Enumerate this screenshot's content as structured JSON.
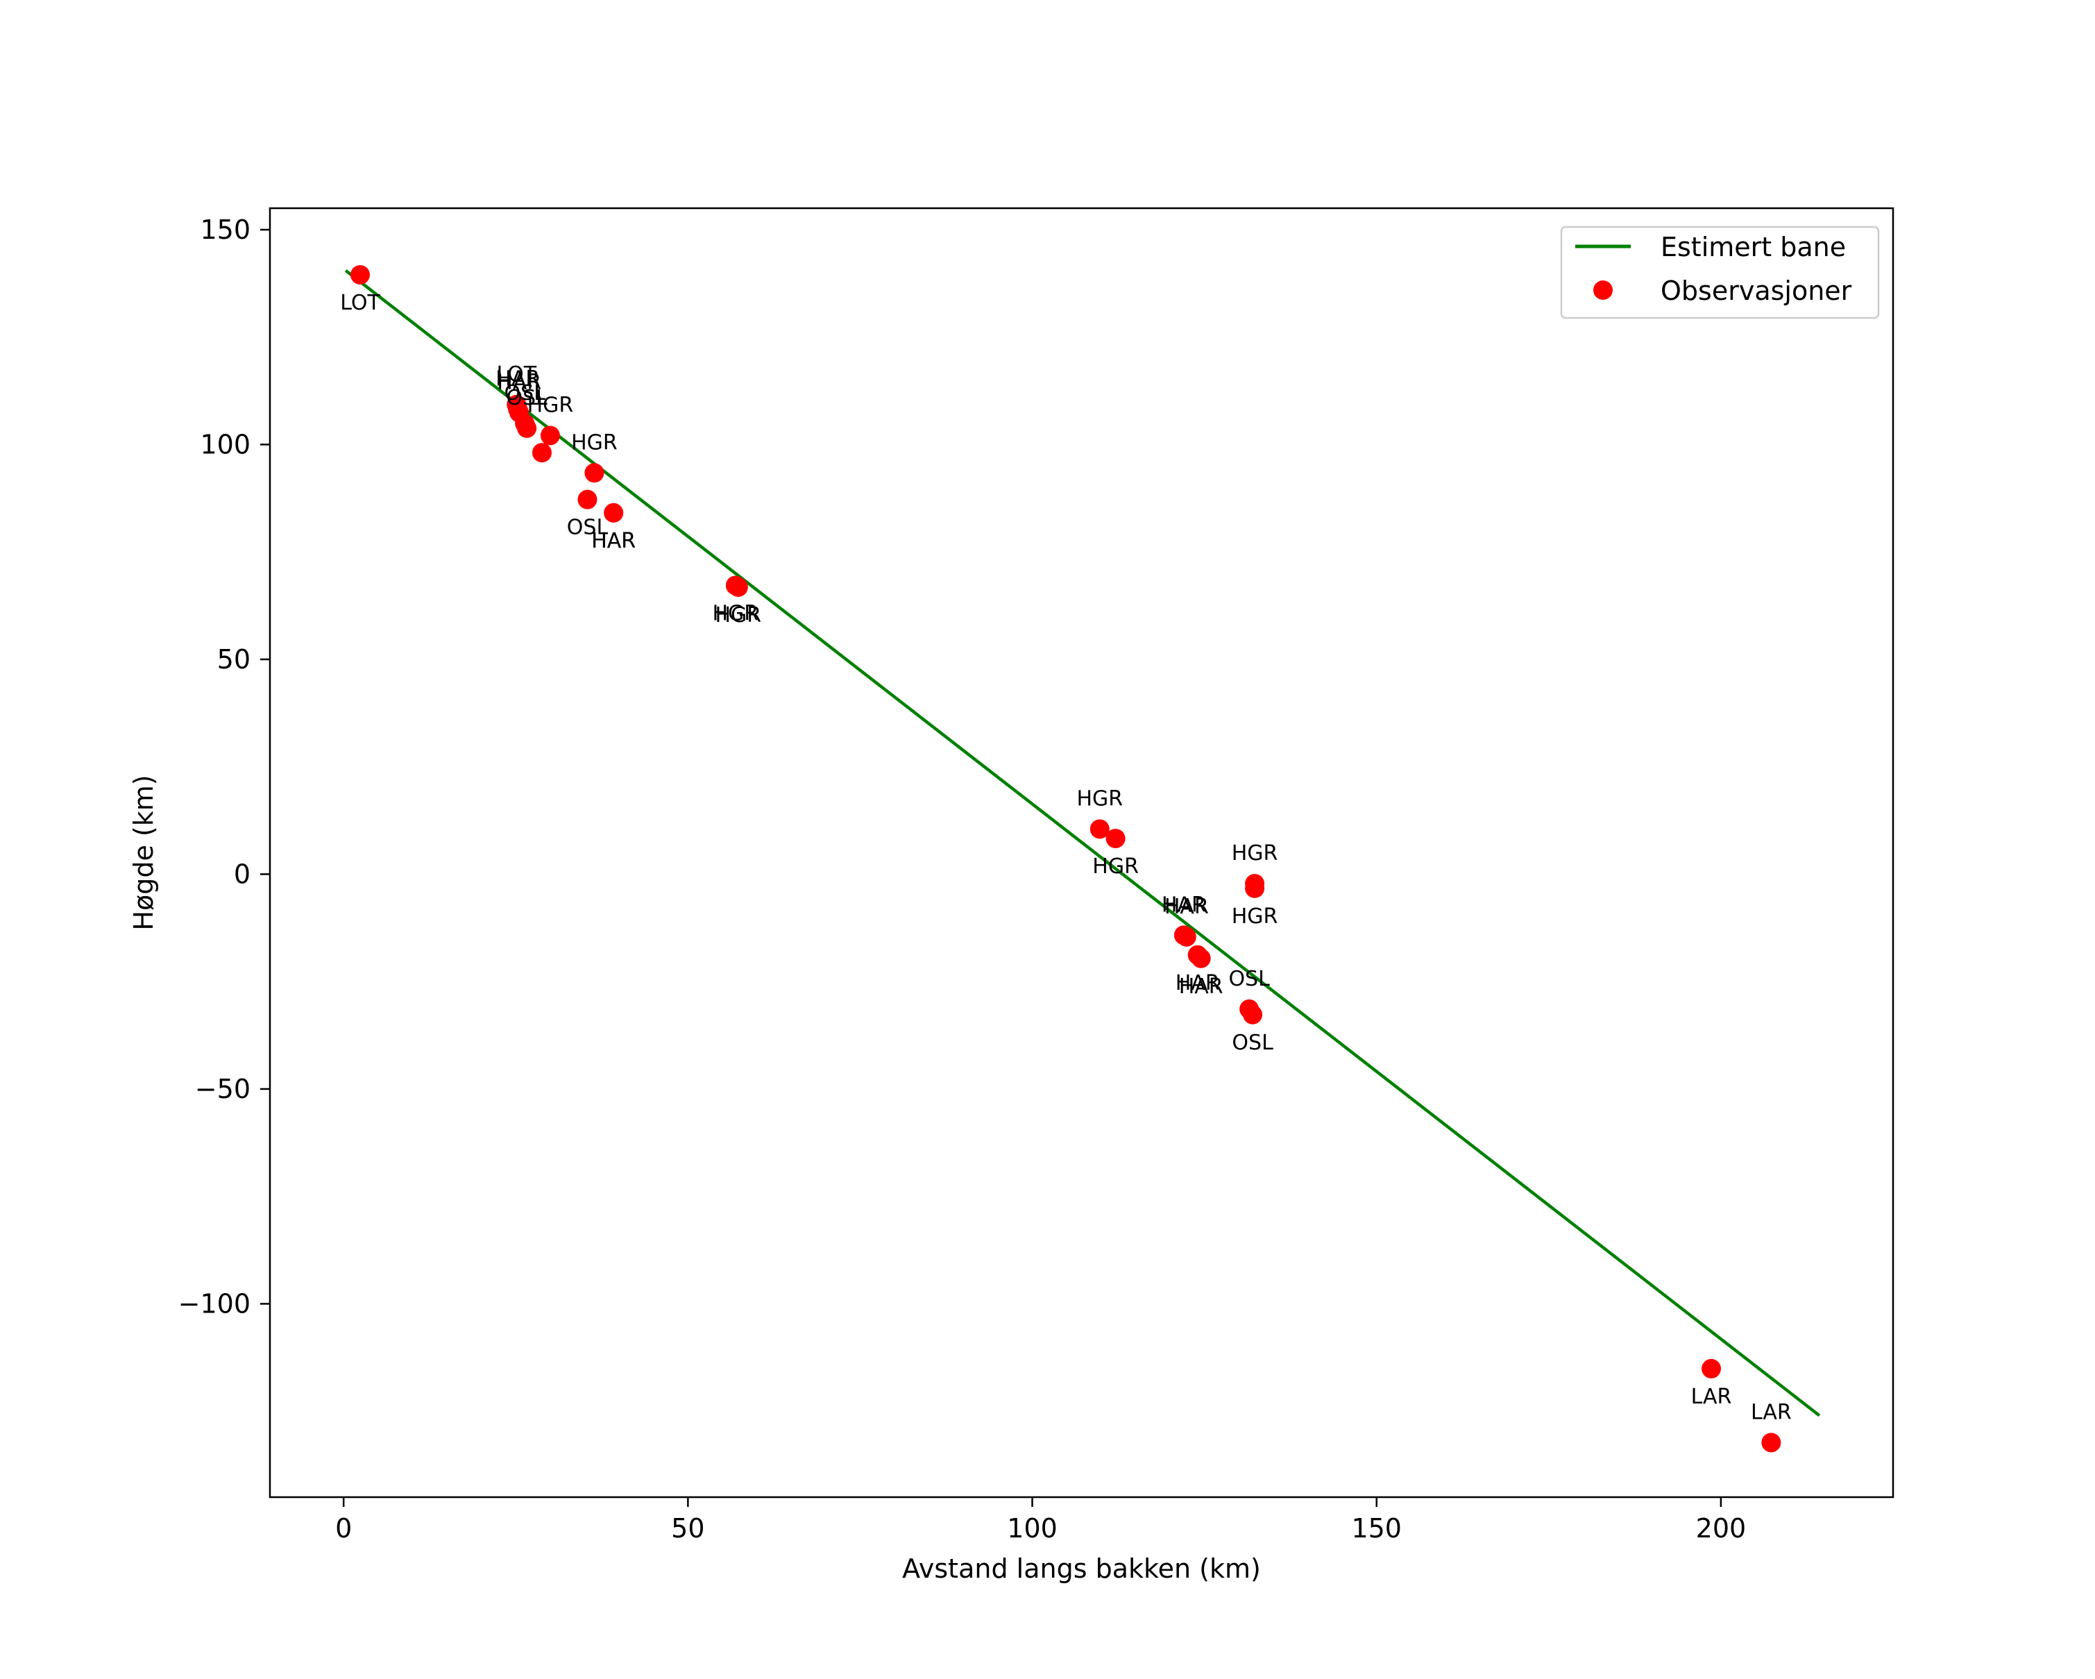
{
  "chart_data": {
    "type": "scatter",
    "title": "",
    "xlabel": "Avstand langs bakken (km)",
    "ylabel": "Høgde (km)",
    "xlim": [
      -10.7,
      225.0
    ],
    "ylim": [
      -145.0,
      155.0
    ],
    "x_ticks": [
      0,
      50,
      100,
      150,
      200
    ],
    "y_ticks": [
      150,
      100,
      50,
      0,
      -50,
      -100
    ],
    "x_tick_labels": [
      "0",
      "50",
      "100",
      "150",
      "200"
    ],
    "y_tick_labels": [
      "150",
      "100",
      "50",
      "0",
      "−50",
      "−100"
    ],
    "grid": false,
    "legend_position": "upper-right",
    "series": [
      {
        "name": "Estimert bane",
        "kind": "line",
        "color": "#008000",
        "x": [
          0.3,
          214.3
        ],
        "y": [
          140.5,
          -126.0
        ]
      },
      {
        "name": "Observasjoner",
        "kind": "scatter",
        "color": "#ff0000",
        "points": [
          {
            "x": 2.4,
            "y": 139.5,
            "label": "LOT",
            "label_pos": "below"
          },
          {
            "x": 25.1,
            "y": 109.3,
            "label": "LOT",
            "label_pos": "above"
          },
          {
            "x": 25.3,
            "y": 108.2,
            "label": "HAR",
            "label_pos": "above"
          },
          {
            "x": 25.5,
            "y": 107.4,
            "label": "HAR",
            "label_pos": "above"
          },
          {
            "x": 26.3,
            "y": 104.9,
            "label": "OSL",
            "label_pos": "above"
          },
          {
            "x": 26.6,
            "y": 103.8,
            "label": "OSL",
            "label_pos": "above"
          },
          {
            "x": 30.0,
            "y": 102.1,
            "label": "HGR",
            "label_pos": "above"
          },
          {
            "x": 28.8,
            "y": 98.1,
            "label": "",
            "label_pos": "none"
          },
          {
            "x": 36.4,
            "y": 93.4,
            "label": "HGR",
            "label_pos": "above"
          },
          {
            "x": 35.4,
            "y": 87.2,
            "label": "OSL",
            "label_pos": "below"
          },
          {
            "x": 39.2,
            "y": 84.1,
            "label": "HAR",
            "label_pos": "below"
          },
          {
            "x": 39.2,
            "y": 84.1,
            "label": "HAR",
            "label_pos": "below"
          },
          {
            "x": 56.9,
            "y": 67.2,
            "label": "HGR",
            "label_pos": "below"
          },
          {
            "x": 57.3,
            "y": 66.8,
            "label": "HGR",
            "label_pos": "below"
          },
          {
            "x": 109.8,
            "y": 10.5,
            "label": "HGR",
            "label_pos": "above"
          },
          {
            "x": 112.1,
            "y": 8.3,
            "label": "HGR",
            "label_pos": "below"
          },
          {
            "x": 132.3,
            "y": -2.2,
            "label": "HGR",
            "label_pos": "above"
          },
          {
            "x": 132.3,
            "y": -3.3,
            "label": "HGR",
            "label_pos": "below"
          },
          {
            "x": 122.0,
            "y": -14.2,
            "label": "HAR",
            "label_pos": "above"
          },
          {
            "x": 122.4,
            "y": -14.6,
            "label": "HAR",
            "label_pos": "above"
          },
          {
            "x": 124.0,
            "y": -18.8,
            "label": "HAR",
            "label_pos": "below"
          },
          {
            "x": 124.5,
            "y": -19.6,
            "label": "HAR",
            "label_pos": "below"
          },
          {
            "x": 131.5,
            "y": -31.4,
            "label": "OSL",
            "label_pos": "above"
          },
          {
            "x": 132.0,
            "y": -32.7,
            "label": "OSL",
            "label_pos": "below"
          },
          {
            "x": 198.6,
            "y": -115.1,
            "label": "LAR",
            "label_pos": "below"
          },
          {
            "x": 207.3,
            "y": -132.3,
            "label": "LAR",
            "label_pos": "above"
          }
        ]
      }
    ]
  }
}
